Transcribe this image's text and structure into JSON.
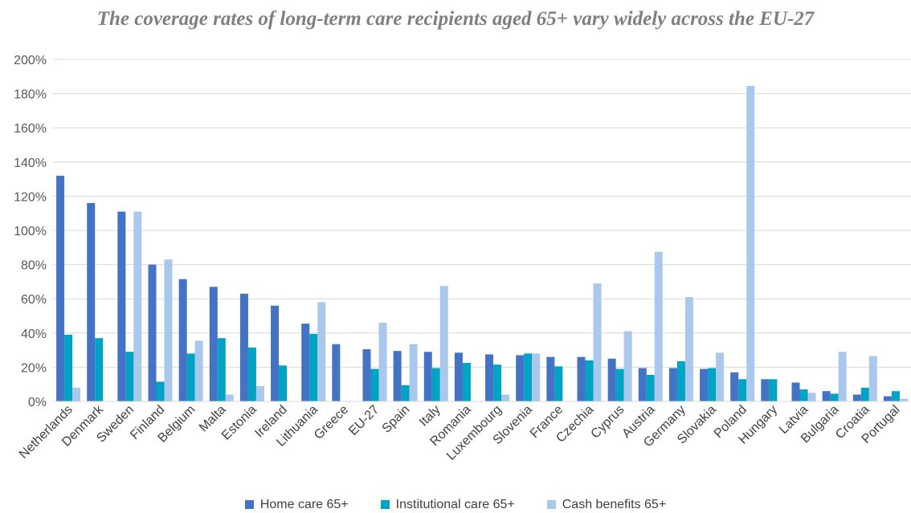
{
  "chart_data": {
    "type": "bar",
    "title": "The coverage rates of long-term care recipients aged 65+ vary widely across the EU-27",
    "categories": [
      "Netherlands",
      "Denmark",
      "Sweden",
      "Finland",
      "Belgium",
      "Malta",
      "Estonia",
      "Ireland",
      "Lithuania",
      "Greece",
      "EU-27",
      "Spain",
      "Italy",
      "Romania",
      "Luxembourg",
      "Slovenia",
      "France",
      "Czechia",
      "Cyprus",
      "Austria",
      "Germany",
      "Slovakia",
      "Poland",
      "Hungary",
      "Latvia",
      "Bulgaria",
      "Croatia",
      "Portugal"
    ],
    "series": [
      {
        "name": "Home care 65+",
        "color": "#4472c4",
        "values": [
          132,
          116,
          111,
          80,
          71.5,
          67,
          63,
          56,
          45.5,
          33.5,
          30.5,
          29.5,
          29,
          28.5,
          27.5,
          27,
          26,
          26,
          25,
          19.5,
          19.5,
          19,
          17,
          13,
          11,
          6,
          4,
          3
        ]
      },
      {
        "name": "Institutional care 65+",
        "color": "#00a3c4",
        "values": [
          39,
          37,
          29,
          11.5,
          28,
          37,
          31.5,
          21,
          39.5,
          0,
          19,
          9.5,
          19.5,
          22.5,
          21.5,
          28,
          20.5,
          24,
          19,
          15.5,
          23.5,
          19.5,
          13,
          13,
          7,
          4.5,
          8,
          6
        ]
      },
      {
        "name": "Cash benefits 65+",
        "color": "#a9c8ec",
        "values": [
          8,
          0,
          111,
          83,
          35.5,
          4,
          9,
          0,
          58,
          0,
          46,
          33.5,
          67.5,
          0,
          4,
          28,
          0,
          69,
          41,
          87.5,
          61,
          28.5,
          184.5,
          0,
          5,
          29,
          26.5,
          1.5
        ]
      }
    ],
    "y_ticks": [
      "0%",
      "20%",
      "40%",
      "60%",
      "80%",
      "100%",
      "120%",
      "140%",
      "160%",
      "180%",
      "200%"
    ],
    "ylim": [
      0,
      200
    ],
    "grid": true,
    "legend_position": "bottom"
  }
}
